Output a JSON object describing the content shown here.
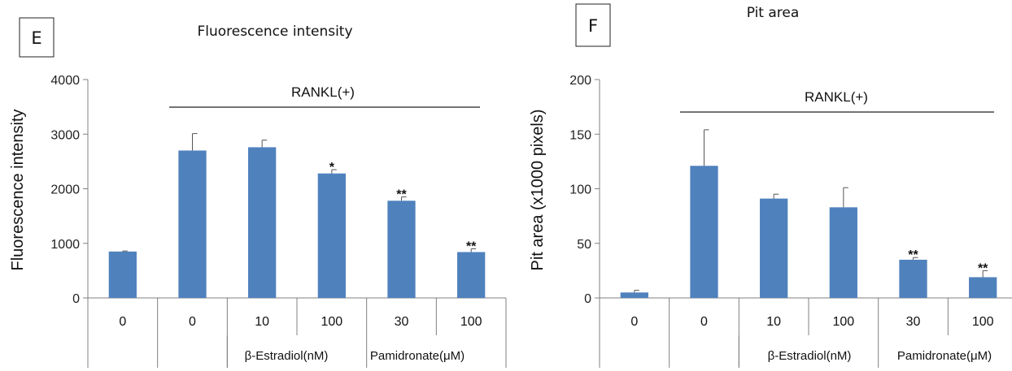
{
  "colors": {
    "bar": "#4f81bd",
    "axis": "#808080",
    "text": "#111111"
  },
  "chart_data": [
    {
      "type": "bar",
      "panel_label": "E",
      "title": "Fluorescence intensity",
      "ylabel": "Fluorescence intensity",
      "xlabel": "",
      "ylim": [
        0,
        4000
      ],
      "yticks": [
        "0",
        "1000",
        "2000",
        "3000",
        "4000"
      ],
      "ytick_values": [
        0,
        1000,
        2000,
        3000,
        4000
      ],
      "categories": [
        "0",
        "0",
        "10",
        "100",
        "30",
        "100"
      ],
      "values": [
        850,
        2700,
        2760,
        2280,
        1780,
        840
      ],
      "errors": [
        10,
        310,
        130,
        70,
        70,
        60
      ],
      "annotations": [
        "",
        "",
        "",
        "*",
        "**",
        "**"
      ],
      "bracket_label": "RANKL(+)",
      "groups": [
        "β-Estradiol(nM)",
        "Pamidronate(μM)"
      ],
      "grid": false
    },
    {
      "type": "bar",
      "panel_label": "F",
      "title": "Pit area",
      "ylabel": "Pit area (x1000 pixels)",
      "xlabel": "",
      "ylim": [
        0,
        200
      ],
      "yticks": [
        "0",
        "50",
        "100",
        "150",
        "200"
      ],
      "ytick_values": [
        0,
        50,
        100,
        150,
        200
      ],
      "categories": [
        "0",
        "0",
        "10",
        "100",
        "30",
        "100"
      ],
      "values": [
        5,
        121,
        91,
        83,
        35,
        19
      ],
      "errors": [
        2,
        33,
        4,
        18,
        2,
        6
      ],
      "annotations": [
        "",
        "",
        "",
        "",
        "**",
        "**"
      ],
      "bracket_label": "RANKL(+)",
      "groups": [
        "β-Estradiol(nM)",
        "Pamidronate(μM)"
      ],
      "grid": false
    }
  ]
}
